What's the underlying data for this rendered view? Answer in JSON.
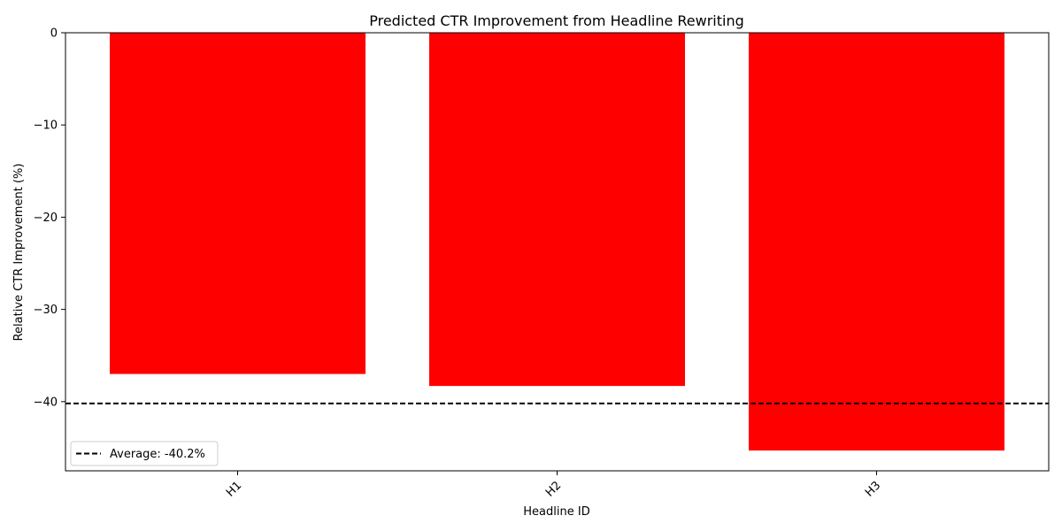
{
  "chart_data": {
    "type": "bar",
    "title": "Predicted CTR Improvement from Headline Rewriting",
    "xlabel": "Headline ID",
    "ylabel": "Relative CTR Improvement (%)",
    "categories": [
      "H1",
      "H2",
      "H3"
    ],
    "values": [
      -37.0,
      -38.3,
      -45.3
    ],
    "ylim": [
      -47.5,
      0
    ],
    "yticks": [
      0,
      -10,
      -20,
      -30,
      -40
    ],
    "bar_color": "#ff0000",
    "reference_line": {
      "value": -40.2,
      "label": "Average: -40.2%",
      "color": "#000000",
      "style": "dashed"
    },
    "legend": {
      "location": "lower-left",
      "entries": [
        "Average: -40.2%"
      ]
    },
    "grid": false
  }
}
